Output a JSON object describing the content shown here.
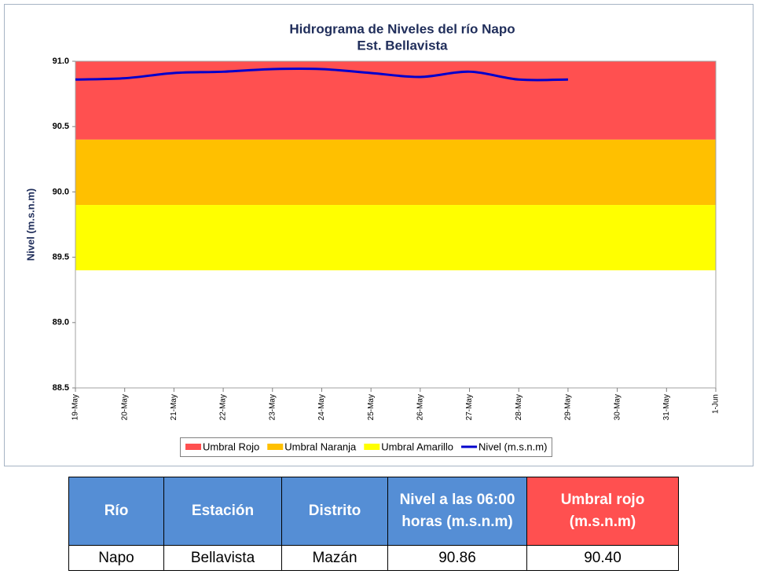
{
  "chart_data": {
    "type": "line",
    "title": "Hidrograma de Niveles del río Napo",
    "subtitle": "Est. Bellavista",
    "y_label": "Nivel (m.s.n.m)",
    "categories": [
      "19-May",
      "20-May",
      "21-May",
      "22-May",
      "23-May",
      "24-May",
      "25-May",
      "26-May",
      "27-May",
      "28-May",
      "29-May",
      "30-May",
      "31-May",
      "1-Jun"
    ],
    "ylim": [
      88.5,
      91.0
    ],
    "yticks": [
      88.5,
      {
        "value": 89,
        "label": "89.0"
      },
      89.5,
      {
        "value": 90,
        "label": "90.0"
      },
      90.5,
      {
        "value": 91,
        "label": "91.0"
      }
    ],
    "bands": [
      {
        "name": "Umbral Rojo",
        "color": "#ff5050",
        "lower": 90.4
      },
      {
        "name": "Umbral Naranja",
        "color": "#ffc000",
        "lower": 89.9
      },
      {
        "name": "Umbral Amarillo",
        "color": "#ffff00",
        "lower": 89.4
      }
    ],
    "series": [
      {
        "name": "Nivel (m.s.n.m)",
        "color": "#0000cc",
        "values": [
          90.86,
          90.87,
          90.91,
          90.92,
          90.94,
          90.94,
          90.91,
          90.88,
          90.92,
          90.86,
          90.86,
          null,
          null,
          null
        ]
      }
    ],
    "legend": "bottom"
  },
  "table": {
    "headers": [
      "Río",
      "Estación",
      "Distrito",
      "Nivel a las 06:00 horas (m.s.n.m)",
      "Umbral rojo (m.s.n.m)"
    ],
    "rows": [
      [
        "Napo",
        "Bellavista",
        "Mazán",
        "90.86",
        "90.40"
      ]
    ]
  }
}
